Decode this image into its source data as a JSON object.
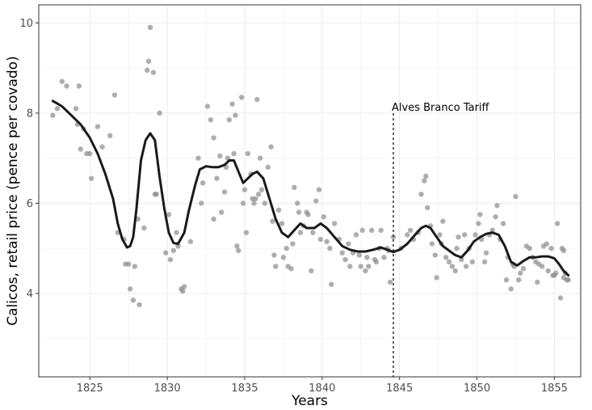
{
  "chart_data": {
    "type": "scatter",
    "xlabel": "Years",
    "ylabel": "Calicos, retail price (pence per covado)",
    "xlim": [
      1821.7,
      1856.7
    ],
    "ylim": [
      2.15,
      10.4
    ],
    "x_ticks": [
      1825,
      1830,
      1835,
      1840,
      1845,
      1850,
      1855
    ],
    "y_ticks": [
      4,
      6,
      8,
      10
    ],
    "grid": true,
    "colors": {
      "points": "#8c8c8c",
      "smooth_line": "#1a1a1a",
      "grid": "#ebebeb",
      "annotation": "#000000"
    },
    "annotation": {
      "x": 1844.6,
      "label": "Alves Branco Tariff",
      "style": "dashed-vertical-line"
    },
    "series": [
      {
        "kind": "points",
        "points": [
          [
            1822.6,
            7.95
          ],
          [
            1822.9,
            8.1
          ],
          [
            1823.2,
            8.7
          ],
          [
            1823.5,
            8.6
          ],
          [
            1824.1,
            8.1
          ],
          [
            1824.2,
            7.75
          ],
          [
            1824.3,
            8.6
          ],
          [
            1824.4,
            7.2
          ],
          [
            1824.6,
            7.65
          ],
          [
            1824.8,
            7.1
          ],
          [
            1825.0,
            7.1
          ],
          [
            1825.1,
            6.55
          ],
          [
            1825.5,
            7.7
          ],
          [
            1825.8,
            7.25
          ],
          [
            1826.3,
            7.5
          ],
          [
            1826.6,
            8.4
          ],
          [
            1826.8,
            5.35
          ],
          [
            1827.2,
            5.2
          ],
          [
            1827.3,
            4.65
          ],
          [
            1827.5,
            4.65
          ],
          [
            1827.6,
            4.1
          ],
          [
            1827.8,
            3.85
          ],
          [
            1827.9,
            4.6
          ],
          [
            1828.1,
            5.65
          ],
          [
            1828.2,
            3.75
          ],
          [
            1828.5,
            5.45
          ],
          [
            1828.7,
            8.95
          ],
          [
            1828.8,
            9.15
          ],
          [
            1828.9,
            9.9
          ],
          [
            1829.1,
            8.9
          ],
          [
            1829.2,
            6.2
          ],
          [
            1829.3,
            6.2
          ],
          [
            1829.5,
            8.0
          ],
          [
            1829.9,
            4.9
          ],
          [
            1830.1,
            5.75
          ],
          [
            1830.2,
            4.75
          ],
          [
            1830.4,
            4.95
          ],
          [
            1830.6,
            5.35
          ],
          [
            1830.7,
            5.05
          ],
          [
            1830.9,
            4.1
          ],
          [
            1831.0,
            4.05
          ],
          [
            1831.1,
            4.15
          ],
          [
            1831.5,
            5.15
          ],
          [
            1832.0,
            7.0
          ],
          [
            1832.2,
            6.0
          ],
          [
            1832.3,
            6.45
          ],
          [
            1832.6,
            8.15
          ],
          [
            1832.8,
            7.85
          ],
          [
            1833.0,
            7.45
          ],
          [
            1833.0,
            5.65
          ],
          [
            1833.2,
            6.55
          ],
          [
            1833.4,
            7.05
          ],
          [
            1833.5,
            5.8
          ],
          [
            1833.7,
            6.25
          ],
          [
            1833.8,
            6.8
          ],
          [
            1833.9,
            7.0
          ],
          [
            1834.0,
            7.85
          ],
          [
            1834.2,
            8.2
          ],
          [
            1834.3,
            7.1
          ],
          [
            1834.4,
            7.95
          ],
          [
            1834.5,
            5.05
          ],
          [
            1834.6,
            4.95
          ],
          [
            1834.8,
            8.35
          ],
          [
            1834.9,
            6.0
          ],
          [
            1835.0,
            6.3
          ],
          [
            1835.1,
            5.35
          ],
          [
            1835.2,
            7.1
          ],
          [
            1835.4,
            6.65
          ],
          [
            1835.5,
            6.1
          ],
          [
            1835.6,
            6.0
          ],
          [
            1835.7,
            6.1
          ],
          [
            1835.8,
            8.3
          ],
          [
            1835.9,
            6.2
          ],
          [
            1836.0,
            7.0
          ],
          [
            1836.1,
            6.3
          ],
          [
            1836.3,
            6.0
          ],
          [
            1836.5,
            6.8
          ],
          [
            1836.7,
            7.25
          ],
          [
            1836.8,
            5.6
          ],
          [
            1836.9,
            4.85
          ],
          [
            1837.0,
            4.6
          ],
          [
            1837.2,
            5.85
          ],
          [
            1837.4,
            5.55
          ],
          [
            1837.5,
            4.8
          ],
          [
            1837.7,
            5.0
          ],
          [
            1837.8,
            4.6
          ],
          [
            1838.0,
            4.55
          ],
          [
            1838.1,
            5.1
          ],
          [
            1838.2,
            6.35
          ],
          [
            1838.4,
            6.0
          ],
          [
            1838.5,
            5.8
          ],
          [
            1838.6,
            5.35
          ],
          [
            1838.8,
            5.5
          ],
          [
            1839.0,
            5.8
          ],
          [
            1839.1,
            5.75
          ],
          [
            1839.3,
            4.5
          ],
          [
            1839.4,
            5.35
          ],
          [
            1839.6,
            6.05
          ],
          [
            1839.8,
            6.3
          ],
          [
            1839.9,
            5.2
          ],
          [
            1840.1,
            5.7
          ],
          [
            1840.3,
            5.15
          ],
          [
            1840.5,
            5.0
          ],
          [
            1840.6,
            4.2
          ],
          [
            1840.8,
            5.55
          ],
          [
            1841.1,
            5.2
          ],
          [
            1841.3,
            4.9
          ],
          [
            1841.5,
            4.75
          ],
          [
            1841.7,
            5.1
          ],
          [
            1841.8,
            4.6
          ],
          [
            1842.0,
            4.9
          ],
          [
            1842.2,
            5.3
          ],
          [
            1842.4,
            4.85
          ],
          [
            1842.5,
            4.6
          ],
          [
            1842.6,
            5.4
          ],
          [
            1842.8,
            4.5
          ],
          [
            1842.9,
            4.8
          ],
          [
            1843.0,
            4.6
          ],
          [
            1843.2,
            5.4
          ],
          [
            1843.4,
            4.75
          ],
          [
            1843.5,
            4.7
          ],
          [
            1843.7,
            5.0
          ],
          [
            1843.8,
            5.4
          ],
          [
            1844.0,
            4.8
          ],
          [
            1844.2,
            5.0
          ],
          [
            1844.3,
            4.95
          ],
          [
            1844.4,
            4.25
          ],
          [
            1844.6,
            5.25
          ],
          [
            1845.1,
            5.0
          ],
          [
            1845.5,
            5.3
          ],
          [
            1845.7,
            5.4
          ],
          [
            1845.9,
            5.2
          ],
          [
            1846.2,
            5.35
          ],
          [
            1846.4,
            6.2
          ],
          [
            1846.6,
            6.5
          ],
          [
            1846.7,
            6.6
          ],
          [
            1846.8,
            5.9
          ],
          [
            1847.0,
            5.5
          ],
          [
            1847.1,
            5.1
          ],
          [
            1847.3,
            4.85
          ],
          [
            1847.4,
            4.35
          ],
          [
            1847.6,
            5.3
          ],
          [
            1847.7,
            5.1
          ],
          [
            1847.8,
            5.6
          ],
          [
            1848.0,
            4.8
          ],
          [
            1848.2,
            4.7
          ],
          [
            1848.4,
            4.6
          ],
          [
            1848.6,
            4.5
          ],
          [
            1848.7,
            5.0
          ],
          [
            1848.8,
            5.25
          ],
          [
            1849.0,
            4.75
          ],
          [
            1849.2,
            5.3
          ],
          [
            1849.3,
            4.6
          ],
          [
            1849.5,
            5.0
          ],
          [
            1849.7,
            4.7
          ],
          [
            1849.9,
            5.3
          ],
          [
            1850.1,
            5.55
          ],
          [
            1850.2,
            5.75
          ],
          [
            1850.3,
            5.2
          ],
          [
            1850.5,
            4.7
          ],
          [
            1850.6,
            4.9
          ],
          [
            1850.8,
            5.3
          ],
          [
            1851.0,
            5.4
          ],
          [
            1851.2,
            5.7
          ],
          [
            1851.3,
            5.95
          ],
          [
            1851.5,
            5.2
          ],
          [
            1851.7,
            5.55
          ],
          [
            1851.9,
            4.3
          ],
          [
            1852.0,
            4.8
          ],
          [
            1852.2,
            4.1
          ],
          [
            1852.3,
            4.65
          ],
          [
            1852.4,
            4.6
          ],
          [
            1852.5,
            6.15
          ],
          [
            1852.7,
            4.3
          ],
          [
            1852.8,
            4.45
          ],
          [
            1853.0,
            4.55
          ],
          [
            1853.2,
            5.05
          ],
          [
            1853.4,
            5.0
          ],
          [
            1853.6,
            4.8
          ],
          [
            1853.8,
            4.7
          ],
          [
            1853.9,
            4.25
          ],
          [
            1854.0,
            4.65
          ],
          [
            1854.2,
            4.6
          ],
          [
            1854.3,
            5.05
          ],
          [
            1854.5,
            5.1
          ],
          [
            1854.6,
            4.5
          ],
          [
            1854.8,
            5.0
          ],
          [
            1854.9,
            4.4
          ],
          [
            1855.0,
            4.4
          ],
          [
            1855.1,
            4.45
          ],
          [
            1855.2,
            5.55
          ],
          [
            1855.4,
            3.9
          ],
          [
            1855.5,
            5.0
          ],
          [
            1855.6,
            4.35
          ],
          [
            1855.7,
            4.45
          ],
          [
            1855.8,
            4.3
          ],
          [
            1855.6,
            4.95
          ],
          [
            1855.9,
            4.3
          ]
        ]
      },
      {
        "kind": "smooth_line",
        "points": [
          [
            1822.6,
            8.27
          ],
          [
            1823.2,
            8.15
          ],
          [
            1823.8,
            7.95
          ],
          [
            1824.4,
            7.75
          ],
          [
            1825.0,
            7.45
          ],
          [
            1825.5,
            7.1
          ],
          [
            1826.0,
            6.65
          ],
          [
            1826.5,
            6.1
          ],
          [
            1826.8,
            5.55
          ],
          [
            1827.1,
            5.2
          ],
          [
            1827.4,
            5.02
          ],
          [
            1827.6,
            5.05
          ],
          [
            1827.8,
            5.25
          ],
          [
            1828.0,
            5.85
          ],
          [
            1828.3,
            6.95
          ],
          [
            1828.6,
            7.4
          ],
          [
            1828.9,
            7.55
          ],
          [
            1829.2,
            7.4
          ],
          [
            1829.5,
            6.6
          ],
          [
            1829.8,
            5.9
          ],
          [
            1830.1,
            5.35
          ],
          [
            1830.4,
            5.12
          ],
          [
            1830.7,
            5.1
          ],
          [
            1831.1,
            5.35
          ],
          [
            1831.4,
            5.85
          ],
          [
            1831.8,
            6.4
          ],
          [
            1832.1,
            6.75
          ],
          [
            1832.5,
            6.82
          ],
          [
            1832.9,
            6.8
          ],
          [
            1833.3,
            6.8
          ],
          [
            1833.7,
            6.85
          ],
          [
            1834.0,
            6.95
          ],
          [
            1834.3,
            6.95
          ],
          [
            1834.6,
            6.7
          ],
          [
            1834.9,
            6.45
          ],
          [
            1835.2,
            6.55
          ],
          [
            1835.5,
            6.65
          ],
          [
            1835.8,
            6.7
          ],
          [
            1836.2,
            6.55
          ],
          [
            1836.6,
            6.1
          ],
          [
            1837.0,
            5.65
          ],
          [
            1837.4,
            5.35
          ],
          [
            1837.8,
            5.25
          ],
          [
            1838.2,
            5.4
          ],
          [
            1838.6,
            5.55
          ],
          [
            1839.0,
            5.45
          ],
          [
            1839.5,
            5.45
          ],
          [
            1839.9,
            5.55
          ],
          [
            1840.3,
            5.45
          ],
          [
            1840.8,
            5.25
          ],
          [
            1841.3,
            5.05
          ],
          [
            1841.8,
            4.97
          ],
          [
            1842.3,
            4.93
          ],
          [
            1842.8,
            4.93
          ],
          [
            1843.3,
            4.97
          ],
          [
            1843.8,
            5.02
          ],
          [
            1844.2,
            4.97
          ],
          [
            1844.6,
            4.92
          ],
          [
            1845.0,
            4.97
          ],
          [
            1845.5,
            5.1
          ],
          [
            1846.0,
            5.3
          ],
          [
            1846.4,
            5.45
          ],
          [
            1846.7,
            5.5
          ],
          [
            1847.0,
            5.45
          ],
          [
            1847.4,
            5.25
          ],
          [
            1847.8,
            5.05
          ],
          [
            1848.2,
            4.95
          ],
          [
            1848.6,
            4.85
          ],
          [
            1849.0,
            4.8
          ],
          [
            1849.4,
            4.95
          ],
          [
            1849.8,
            5.15
          ],
          [
            1850.2,
            5.25
          ],
          [
            1850.6,
            5.32
          ],
          [
            1851.0,
            5.35
          ],
          [
            1851.4,
            5.3
          ],
          [
            1851.8,
            5.05
          ],
          [
            1852.2,
            4.7
          ],
          [
            1852.6,
            4.62
          ],
          [
            1853.0,
            4.72
          ],
          [
            1853.4,
            4.8
          ],
          [
            1853.8,
            4.8
          ],
          [
            1854.2,
            4.82
          ],
          [
            1854.6,
            4.82
          ],
          [
            1855.0,
            4.78
          ],
          [
            1855.3,
            4.65
          ],
          [
            1855.6,
            4.5
          ],
          [
            1855.9,
            4.4
          ]
        ]
      }
    ]
  }
}
